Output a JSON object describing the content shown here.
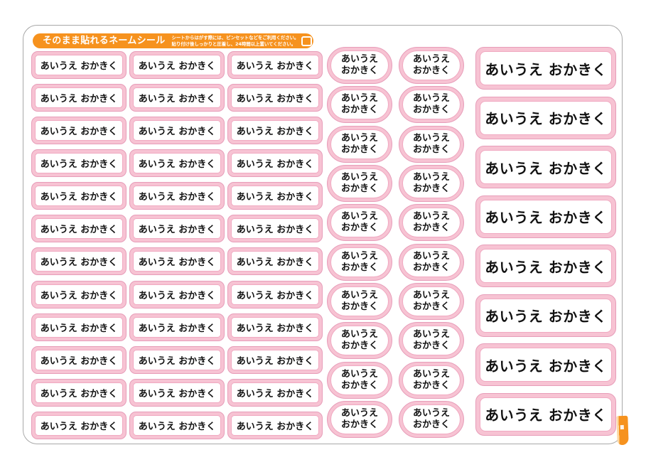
{
  "header": {
    "title": "そのまま貼れるネームシール",
    "instructions": [
      "シートからはがす際には、ピンセットなどをご利用ください。",
      "貼り付け後しっかりと圧着し、24時間以上置いてください。"
    ]
  },
  "stickers": {
    "small": {
      "label": "あいうえ おかきく",
      "columns": 3,
      "rows": 12
    },
    "oval": {
      "line1": "あいうえ",
      "line2": "おかきく",
      "columns": 2,
      "rows": 10
    },
    "large": {
      "label": "あいうえ おかきく",
      "columns": 1,
      "rows": 8
    }
  },
  "colors": {
    "accent_orange": "#F6921E",
    "sticker_fill_pink": "#F7C3D3",
    "sticker_outline_pink": "#E79DB9",
    "text": "#111111",
    "sheet_border": "#A8A8A8"
  }
}
